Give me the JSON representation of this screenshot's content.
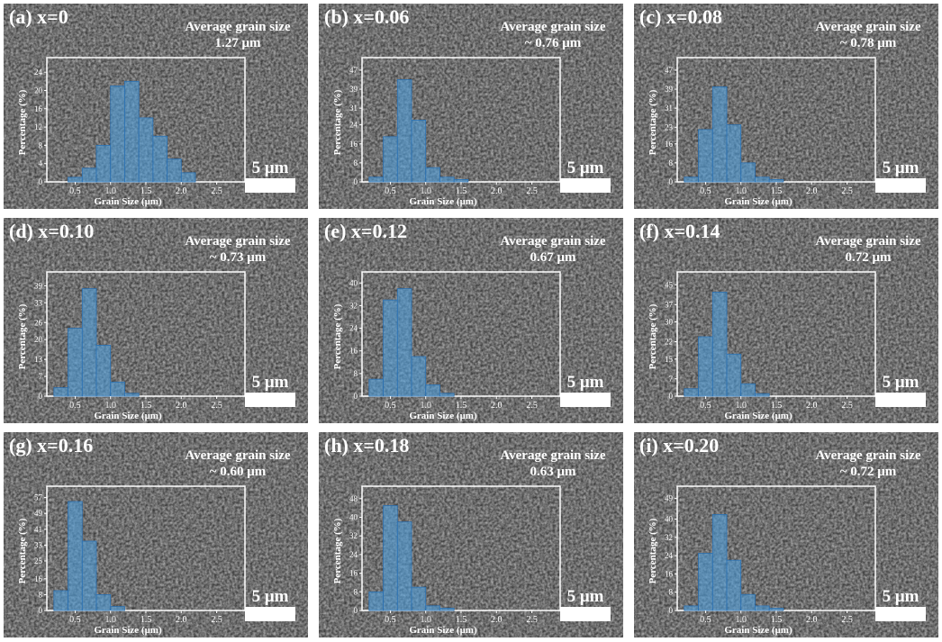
{
  "chart_data": [
    {
      "type": "histogram",
      "title": "(a) x=0",
      "annotation": [
        "Average grain size",
        "1.27 μm"
      ],
      "scale_bar": "5 μm",
      "xlabel": "Grain Size (μm)",
      "ylabel": "Percentage (%)",
      "color": "#4f9fdc",
      "bins": [
        0.2,
        0.4,
        0.6,
        0.8,
        1.0,
        1.2,
        1.4,
        1.6,
        1.8,
        2.0,
        2.2
      ],
      "values": [
        0,
        1,
        3,
        8,
        21,
        22,
        14,
        10,
        5,
        2
      ],
      "xlim": [
        0.1,
        2.9
      ],
      "xticks": [
        0.5,
        {
          "value": 1,
          "label": "1.0"
        },
        1.5,
        {
          "value": 2,
          "label": "2.0"
        },
        2.5
      ],
      "ylim": [
        0,
        26
      ],
      "yticks": [
        0,
        4,
        8,
        12,
        16,
        20,
        24
      ]
    },
    {
      "type": "histogram",
      "title": "(b) x=0.06",
      "annotation": [
        "Average grain size",
        "~ 0.76 μm"
      ],
      "scale_bar": "5 μm",
      "xlabel": "Grain Size (μm)",
      "ylabel": "Percentage (%)",
      "color": "#4f9fdc",
      "bins": [
        0.2,
        0.4,
        0.6,
        0.8,
        1.0,
        1.2,
        1.4,
        1.6,
        1.8,
        2.0,
        2.2
      ],
      "values": [
        2,
        19,
        43,
        26,
        6,
        2,
        1,
        0,
        0,
        0
      ],
      "xlim": [
        0.1,
        2.9
      ],
      "xticks": [
        0.5,
        {
          "value": 1,
          "label": "1.0"
        },
        1.5,
        {
          "value": 2,
          "label": "2.0"
        },
        2.5
      ],
      "ylim": [
        0,
        50
      ],
      "yticks": [
        0,
        8,
        16,
        24,
        31,
        39,
        47
      ]
    },
    {
      "type": "histogram",
      "title": "(c) x=0.08",
      "annotation": [
        "Average grain size",
        "~ 0.78 μm"
      ],
      "scale_bar": "5 μm",
      "xlabel": "Grain Size (μm)",
      "ylabel": "Percentage (%)",
      "color": "#4f9fdc",
      "bins": [
        0.2,
        0.4,
        0.6,
        0.8,
        1.0,
        1.2,
        1.4,
        1.6,
        1.8,
        2.0,
        2.2
      ],
      "values": [
        2,
        22,
        40,
        24,
        8,
        2,
        1,
        0,
        0,
        0
      ],
      "xlim": [
        0.1,
        2.9
      ],
      "xticks": [
        0.5,
        {
          "value": 1,
          "label": "1.0"
        },
        1.5,
        {
          "value": 2,
          "label": "2.0"
        },
        2.5
      ],
      "ylim": [
        0,
        50
      ],
      "yticks": [
        0,
        8,
        16,
        23,
        31,
        39,
        47
      ]
    },
    {
      "type": "histogram",
      "title": "(d) x=0.10",
      "annotation": [
        "Average grain size",
        "~ 0.73 μm"
      ],
      "scale_bar": "5 μm",
      "xlabel": "Grain Size (μm)",
      "ylabel": "Percentage (%)",
      "color": "#4f9fdc",
      "bins": [
        0.2,
        0.4,
        0.6,
        0.8,
        1.0,
        1.2,
        1.4,
        1.6,
        1.8,
        2.0,
        2.2
      ],
      "values": [
        3,
        24,
        38,
        18,
        5,
        1,
        0,
        0,
        0,
        0
      ],
      "xlim": [
        0.1,
        2.9
      ],
      "xticks": [
        0.5,
        {
          "value": 1,
          "label": "1.0"
        },
        1.5,
        {
          "value": 2,
          "label": "2.0"
        },
        2.5
      ],
      "ylim": [
        0,
        42
      ],
      "yticks": [
        0,
        7,
        13,
        20,
        26,
        33,
        39
      ]
    },
    {
      "type": "histogram",
      "title": "(e) x=0.12",
      "annotation": [
        "Average grain size",
        "0.67 μm"
      ],
      "scale_bar": "5 μm",
      "xlabel": "Grain Size (μm)",
      "ylabel": "Percentage (%)",
      "color": "#4f9fdc",
      "bins": [
        0.2,
        0.4,
        0.6,
        0.8,
        1.0,
        1.2,
        1.4,
        1.6,
        1.8,
        2.0,
        2.2
      ],
      "values": [
        6,
        34,
        38,
        14,
        4,
        1,
        0,
        0,
        0,
        0
      ],
      "xlim": [
        0.1,
        2.9
      ],
      "xticks": [
        0.5,
        {
          "value": 1,
          "label": "1.0"
        },
        1.5,
        {
          "value": 2,
          "label": "2.0"
        },
        2.5
      ],
      "ylim": [
        0,
        42
      ],
      "yticks": [
        0,
        8,
        16,
        24,
        32,
        40
      ]
    },
    {
      "type": "histogram",
      "title": "(f) x=0.14",
      "annotation": [
        "Average grain size",
        "0.72 μm"
      ],
      "scale_bar": "5 μm",
      "xlabel": "Grain Size (μm)",
      "ylabel": "Percentage (%)",
      "color": "#4f9fdc",
      "bins": [
        0.2,
        0.4,
        0.6,
        0.8,
        1.0,
        1.2,
        1.4,
        1.6,
        1.8,
        2.0,
        2.2
      ],
      "values": [
        3,
        24,
        42,
        17,
        5,
        1,
        0,
        0,
        0,
        0
      ],
      "xlim": [
        0.1,
        2.9
      ],
      "xticks": [
        0.5,
        {
          "value": 1,
          "label": "1.0"
        },
        1.5,
        {
          "value": 2,
          "label": "2.0"
        },
        2.5
      ],
      "ylim": [
        0,
        48
      ],
      "yticks": [
        0,
        7,
        15,
        22,
        30,
        37,
        45
      ]
    },
    {
      "type": "histogram",
      "title": "(g) x=0.16",
      "annotation": [
        "Average grain size",
        "~ 0.60 μm"
      ],
      "scale_bar": "5 μm",
      "xlabel": "Grain Size (μm)",
      "ylabel": "Percentage (%)",
      "color": "#4f9fdc",
      "bins": [
        0.2,
        0.4,
        0.6,
        0.8,
        1.0,
        1.2,
        1.4,
        1.6,
        1.8,
        2.0,
        2.2
      ],
      "values": [
        10,
        55,
        35,
        8,
        2,
        0,
        0,
        0,
        0,
        0
      ],
      "xlim": [
        0.1,
        2.9
      ],
      "xticks": [
        0.5,
        {
          "value": 1,
          "label": "1.0"
        },
        1.5,
        {
          "value": 2,
          "label": "2.0"
        },
        2.5
      ],
      "ylim": [
        0,
        60
      ],
      "yticks": [
        0,
        8,
        16,
        25,
        33,
        41,
        49,
        57
      ]
    },
    {
      "type": "histogram",
      "title": "(h) x=0.18",
      "annotation": [
        "Average grain size",
        "0.63 μm"
      ],
      "scale_bar": "5 μm",
      "xlabel": "Grain Size (μm)",
      "ylabel": "Percentage (%)",
      "color": "#4f9fdc",
      "bins": [
        0.2,
        0.4,
        0.6,
        0.8,
        1.0,
        1.2,
        1.4,
        1.6,
        1.8,
        2.0,
        2.2
      ],
      "values": [
        8,
        45,
        38,
        10,
        2,
        1,
        0,
        0,
        0,
        0
      ],
      "xlim": [
        0.1,
        2.9
      ],
      "xticks": [
        0.5,
        {
          "value": 1,
          "label": "1.0"
        },
        1.5,
        {
          "value": 2,
          "label": "2.0"
        },
        2.5
      ],
      "ylim": [
        0,
        51
      ],
      "yticks": [
        0,
        8,
        16,
        24,
        32,
        40,
        48
      ]
    },
    {
      "type": "histogram",
      "title": "(i) x=0.20",
      "annotation": [
        "Average grain size",
        "~ 0.72 μm"
      ],
      "scale_bar": "5 μm",
      "xlabel": "Grain Size (μm)",
      "ylabel": "Percentage (%)",
      "color": "#4f9fdc",
      "bins": [
        0.2,
        0.4,
        0.6,
        0.8,
        1.0,
        1.2,
        1.4,
        1.6,
        1.8,
        2.0,
        2.2
      ],
      "values": [
        2,
        25,
        42,
        22,
        7,
        2,
        1,
        0,
        0,
        0
      ],
      "xlim": [
        0.1,
        2.9
      ],
      "xticks": [
        0.5,
        {
          "value": 1,
          "label": "1.0"
        },
        1.5,
        {
          "value": 2,
          "label": "2.0"
        },
        2.5
      ],
      "ylim": [
        0,
        52
      ],
      "yticks": [
        0,
        8,
        16,
        24,
        32,
        40,
        49
      ]
    }
  ]
}
